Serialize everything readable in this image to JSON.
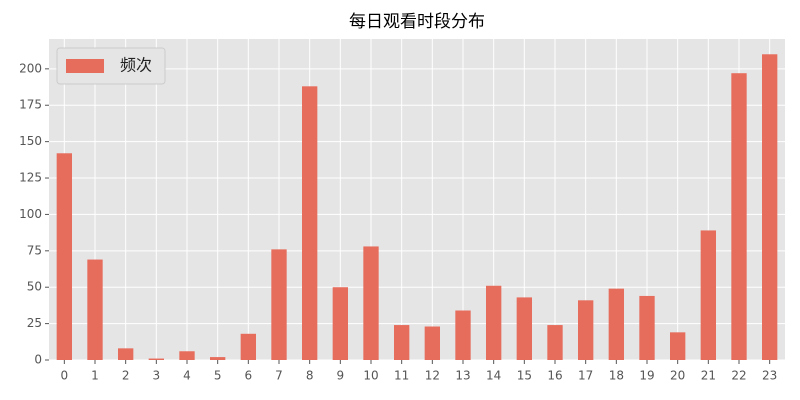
{
  "chart_data": {
    "type": "bar",
    "title": "每日观看时段分布",
    "categories": [
      "0",
      "1",
      "2",
      "3",
      "4",
      "5",
      "6",
      "7",
      "8",
      "9",
      "10",
      "11",
      "12",
      "13",
      "14",
      "15",
      "16",
      "17",
      "18",
      "19",
      "20",
      "21",
      "22",
      "23"
    ],
    "series": [
      {
        "name": "频次",
        "color": "#e66c5c",
        "values": [
          142,
          69,
          8,
          1,
          6,
          2,
          18,
          76,
          188,
          50,
          78,
          24,
          23,
          34,
          51,
          43,
          24,
          41,
          49,
          44,
          19,
          89,
          197,
          210
        ]
      }
    ],
    "ylim": [
      0,
      220.5
    ],
    "yticks": [
      0,
      25,
      50,
      75,
      100,
      125,
      150,
      175,
      200
    ],
    "grid": true,
    "legend": "upper left"
  }
}
